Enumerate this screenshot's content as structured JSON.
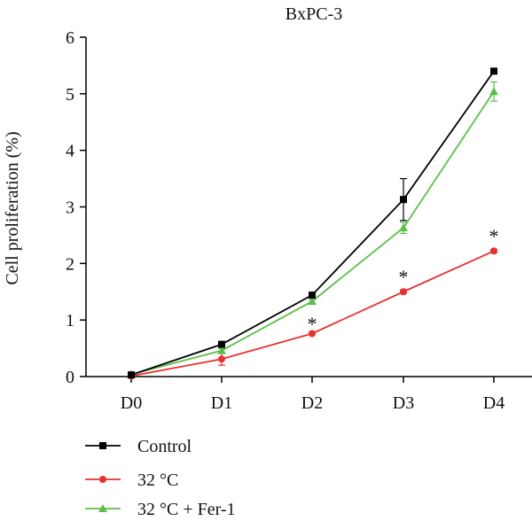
{
  "chart_data": {
    "type": "line",
    "title": "BxPC-3",
    "ylabel": "Cell proliferation (%)",
    "xlabel": "",
    "categories": [
      "D0",
      "D1",
      "D2",
      "D3",
      "D4"
    ],
    "ylim": [
      0,
      6
    ],
    "yticks": [
      0,
      1,
      2,
      3,
      4,
      5,
      6
    ],
    "grid": false,
    "legend_position": "bottom-left",
    "series": [
      {
        "name": "Control",
        "color": "#000000",
        "marker": "square",
        "values": [
          0.03,
          0.57,
          1.44,
          3.13,
          5.4
        ],
        "errors": [
          0,
          0.04,
          0.03,
          0.37,
          0.04
        ]
      },
      {
        "name": "32 °C",
        "color": "#e8312f",
        "marker": "circle",
        "values": [
          0.01,
          0.31,
          0.76,
          1.5,
          2.22
        ],
        "errors": [
          0,
          0.11,
          0.02,
          0.03,
          0.03
        ]
      },
      {
        "name": "32 °C + Fer-1",
        "color": "#5cbf4a",
        "marker": "triangle",
        "values": [
          0.04,
          0.46,
          1.33,
          2.63,
          5.04
        ],
        "errors": [
          0,
          0.04,
          0.03,
          0.1,
          0.17
        ]
      }
    ],
    "annotations": [
      {
        "category": "D2",
        "text": "*",
        "y": 1.0
      },
      {
        "category": "D3",
        "text": "*",
        "y": 1.83
      },
      {
        "category": "D4",
        "text": "*",
        "y": 2.55
      }
    ]
  }
}
